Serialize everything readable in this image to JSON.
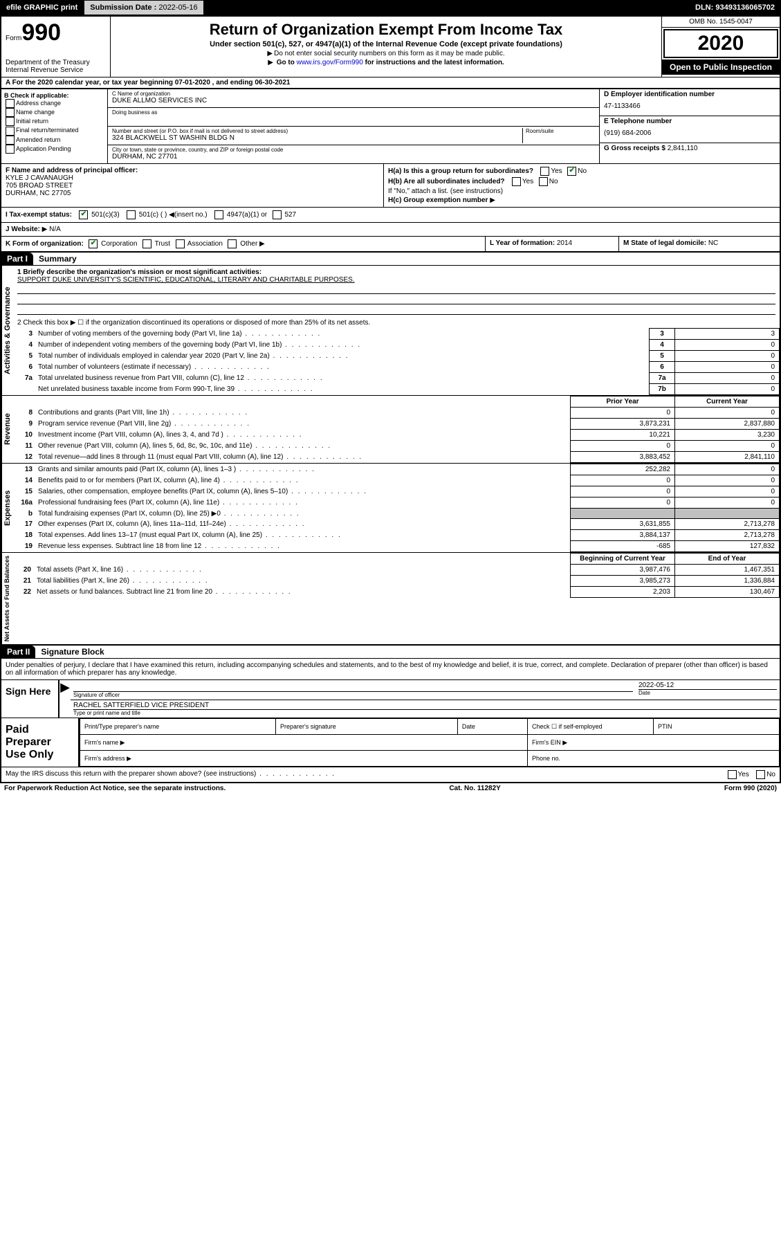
{
  "topbar": {
    "efile": "efile GRAPHIC print",
    "submission_label": "Submission Date :",
    "submission_date": "2022-05-16",
    "dln_label": "DLN:",
    "dln": "93493136065702"
  },
  "header": {
    "form_word": "Form",
    "form_num": "990",
    "dept": "Department of the Treasury\nInternal Revenue Service",
    "title": "Return of Organization Exempt From Income Tax",
    "sub": "Under section 501(c), 527, or 4947(a)(1) of the Internal Revenue Code (except private foundations)",
    "sub2a": "Do not enter social security numbers on this form as it may be made public.",
    "sub2b_pre": "Go to ",
    "sub2b_link": "www.irs.gov/Form990",
    "sub2b_post": " for instructions and the latest information.",
    "omb": "OMB No. 1545-0047",
    "year": "2020",
    "open": "Open to Public Inspection"
  },
  "rowA": "A For the 2020 calendar year, or tax year beginning 07-01-2020   , and ending 06-30-2021",
  "boxB": {
    "label": "B Check if applicable:",
    "items": [
      "Address change",
      "Name change",
      "Initial return",
      "Final return/terminated",
      "Amended return",
      "Application Pending"
    ]
  },
  "boxC": {
    "name_lbl": "C Name of organization",
    "name": "DUKE ALLMO SERVICES INC",
    "dba_lbl": "Doing business as",
    "dba": "",
    "street_lbl": "Number and street (or P.O. box if mail is not delivered to street address)",
    "room_lbl": "Room/suite",
    "street": "324 BLACKWELL ST WASHIN BLDG N",
    "city_lbl": "City or town, state or province, country, and ZIP or foreign postal code",
    "city": "DURHAM, NC  27701"
  },
  "boxD": {
    "ein_lbl": "D Employer identification number",
    "ein": "47-1133466",
    "phone_lbl": "E Telephone number",
    "phone": "(919) 684-2006",
    "gross_lbl": "G Gross receipts $",
    "gross": "2,841,110"
  },
  "rowF": {
    "lbl": "F  Name and address of principal officer:",
    "name": "KYLE J CAVANAUGH",
    "street": "705 BROAD STREET",
    "city": "DURHAM, NC  27705"
  },
  "rowH": {
    "a_lbl": "H(a)  Is this a group return for subordinates?",
    "a_yes": "Yes",
    "a_no": "No",
    "b_lbl": "H(b)  Are all subordinates included?",
    "b_note": "If \"No,\" attach a list. (see instructions)",
    "c_lbl": "H(c)  Group exemption number"
  },
  "rowI": {
    "lbl": "I   Tax-exempt status:",
    "o1": "501(c)(3)",
    "o2": "501(c) (  )",
    "o2_hint": "(insert no.)",
    "o3": "4947(a)(1) or",
    "o4": "527"
  },
  "rowJ": {
    "lbl": "J   Website:",
    "val": "N/A"
  },
  "rowK": {
    "lbl": "K Form of organization:",
    "o1": "Corporation",
    "o2": "Trust",
    "o3": "Association",
    "o4": "Other"
  },
  "rowL": {
    "lbl": "L Year of formation:",
    "val": "2014"
  },
  "rowM": {
    "lbl": "M State of legal domicile:",
    "val": "NC"
  },
  "part1": {
    "bar": "Part I",
    "title": "Summary",
    "side_gov": "Activities & Governance",
    "side_rev": "Revenue",
    "side_exp": "Expenses",
    "side_net": "Net Assets or Fund Balances",
    "line1_lbl": "1  Briefly describe the organization's mission or most significant activities:",
    "line1_val": "SUPPORT DUKE UNIVERSITY'S SCIENTIFIC, EDUCATIONAL, LITERARY AND CHARITABLE PURPOSES.",
    "line2": "2   Check this box ▶ ☐  if the organization discontinued its operations or disposed of more than 25% of its net assets.",
    "rows_gov": [
      {
        "n": "3",
        "d": "Number of voting members of the governing body (Part VI, line 1a)",
        "box": "3",
        "v": "3"
      },
      {
        "n": "4",
        "d": "Number of independent voting members of the governing body (Part VI, line 1b)",
        "box": "4",
        "v": "0"
      },
      {
        "n": "5",
        "d": "Total number of individuals employed in calendar year 2020 (Part V, line 2a)",
        "box": "5",
        "v": "0"
      },
      {
        "n": "6",
        "d": "Total number of volunteers (estimate if necessary)",
        "box": "6",
        "v": "0"
      },
      {
        "n": "7a",
        "d": "Total unrelated business revenue from Part VIII, column (C), line 12",
        "box": "7a",
        "v": "0"
      },
      {
        "n": "",
        "d": "Net unrelated business taxable income from Form 990-T, line 39",
        "box": "7b",
        "v": "0"
      }
    ],
    "hdr_prior": "Prior Year",
    "hdr_curr": "Current Year",
    "rows_rev": [
      {
        "n": "8",
        "d": "Contributions and grants (Part VIII, line 1h)",
        "p": "0",
        "c": "0"
      },
      {
        "n": "9",
        "d": "Program service revenue (Part VIII, line 2g)",
        "p": "3,873,231",
        "c": "2,837,880"
      },
      {
        "n": "10",
        "d": "Investment income (Part VIII, column (A), lines 3, 4, and 7d )",
        "p": "10,221",
        "c": "3,230"
      },
      {
        "n": "11",
        "d": "Other revenue (Part VIII, column (A), lines 5, 6d, 8c, 9c, 10c, and 11e)",
        "p": "0",
        "c": "0"
      },
      {
        "n": "12",
        "d": "Total revenue—add lines 8 through 11 (must equal Part VIII, column (A), line 12)",
        "p": "3,883,452",
        "c": "2,841,110"
      }
    ],
    "rows_exp": [
      {
        "n": "13",
        "d": "Grants and similar amounts paid (Part IX, column (A), lines 1–3 )",
        "p": "252,282",
        "c": "0"
      },
      {
        "n": "14",
        "d": "Benefits paid to or for members (Part IX, column (A), line 4)",
        "p": "0",
        "c": "0"
      },
      {
        "n": "15",
        "d": "Salaries, other compensation, employee benefits (Part IX, column (A), lines 5–10)",
        "p": "0",
        "c": "0"
      },
      {
        "n": "16a",
        "d": "Professional fundraising fees (Part IX, column (A), line 11e)",
        "p": "0",
        "c": "0"
      },
      {
        "n": "b",
        "d": "Total fundraising expenses (Part IX, column (D), line 25) ▶0",
        "p": "__shade__",
        "c": "__shade__"
      },
      {
        "n": "17",
        "d": "Other expenses (Part IX, column (A), lines 11a–11d, 11f–24e)",
        "p": "3,631,855",
        "c": "2,713,278"
      },
      {
        "n": "18",
        "d": "Total expenses. Add lines 13–17 (must equal Part IX, column (A), line 25)",
        "p": "3,884,137",
        "c": "2,713,278"
      },
      {
        "n": "19",
        "d": "Revenue less expenses. Subtract line 18 from line 12",
        "p": "-685",
        "c": "127,832"
      }
    ],
    "hdr_beg": "Beginning of Current Year",
    "hdr_end": "End of Year",
    "rows_net": [
      {
        "n": "20",
        "d": "Total assets (Part X, line 16)",
        "p": "3,987,476",
        "c": "1,467,351"
      },
      {
        "n": "21",
        "d": "Total liabilities (Part X, line 26)",
        "p": "3,985,273",
        "c": "1,336,884"
      },
      {
        "n": "22",
        "d": "Net assets or fund balances. Subtract line 21 from line 20",
        "p": "2,203",
        "c": "130,467"
      }
    ]
  },
  "part2": {
    "bar": "Part II",
    "title": "Signature Block",
    "perjury": "Under penalties of perjury, I declare that I have examined this return, including accompanying schedules and statements, and to the best of my knowledge and belief, it is true, correct, and complete. Declaration of preparer (other than officer) is based on all information of which preparer has any knowledge.",
    "sign_here": "Sign Here",
    "sig_officer_lbl": "Signature of officer",
    "date_lbl": "Date",
    "sig_date": "2022-05-12",
    "typed_name": "RACHEL SATTERFIELD  VICE PRESIDENT",
    "typed_lbl": "Type or print name and title",
    "paid": "Paid Preparer Use Only",
    "prep_name_lbl": "Print/Type preparer's name",
    "prep_sig_lbl": "Preparer's signature",
    "prep_date_lbl": "Date",
    "check_self": "Check ☐ if self-employed",
    "ptin_lbl": "PTIN",
    "firm_name_lbl": "Firm's name  ▶",
    "firm_ein_lbl": "Firm's EIN ▶",
    "firm_addr_lbl": "Firm's address ▶",
    "phone_lbl": "Phone no.",
    "discuss": "May the IRS discuss this return with the preparer shown above? (see instructions)",
    "yes": "Yes",
    "no": "No"
  },
  "footer": {
    "left": "For Paperwork Reduction Act Notice, see the separate instructions.",
    "mid": "Cat. No. 11282Y",
    "right": "Form 990 (2020)"
  }
}
